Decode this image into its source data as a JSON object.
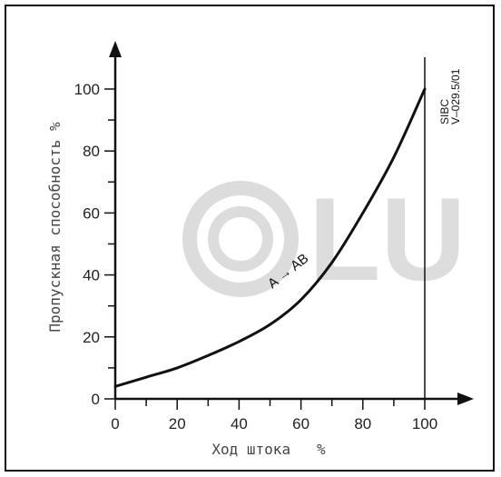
{
  "chart_data": {
    "type": "line",
    "xlabel": "Ход штока   %",
    "ylabel": "Пропускная  способность   %",
    "xlim": [
      0,
      100
    ],
    "ylim": [
      0,
      100
    ],
    "x_ticks": [
      "0",
      "20",
      "40",
      "60",
      "80",
      "100"
    ],
    "y_ticks": [
      "0",
      "20",
      "40",
      "60",
      "80",
      "100"
    ],
    "series": [
      {
        "name": "A → AB",
        "x": [
          0,
          10,
          20,
          30,
          40,
          50,
          60,
          70,
          80,
          90,
          100
        ],
        "y": [
          4,
          7,
          10,
          14,
          18.5,
          24,
          32,
          44,
          60,
          78,
          100
        ]
      }
    ],
    "annotation": {
      "line1": "SIBC",
      "line2": "V–029.5/01"
    },
    "watermark": "LU",
    "colors": {
      "line": "#111111",
      "watermark": "#dddddd",
      "frame": "#111111"
    }
  }
}
